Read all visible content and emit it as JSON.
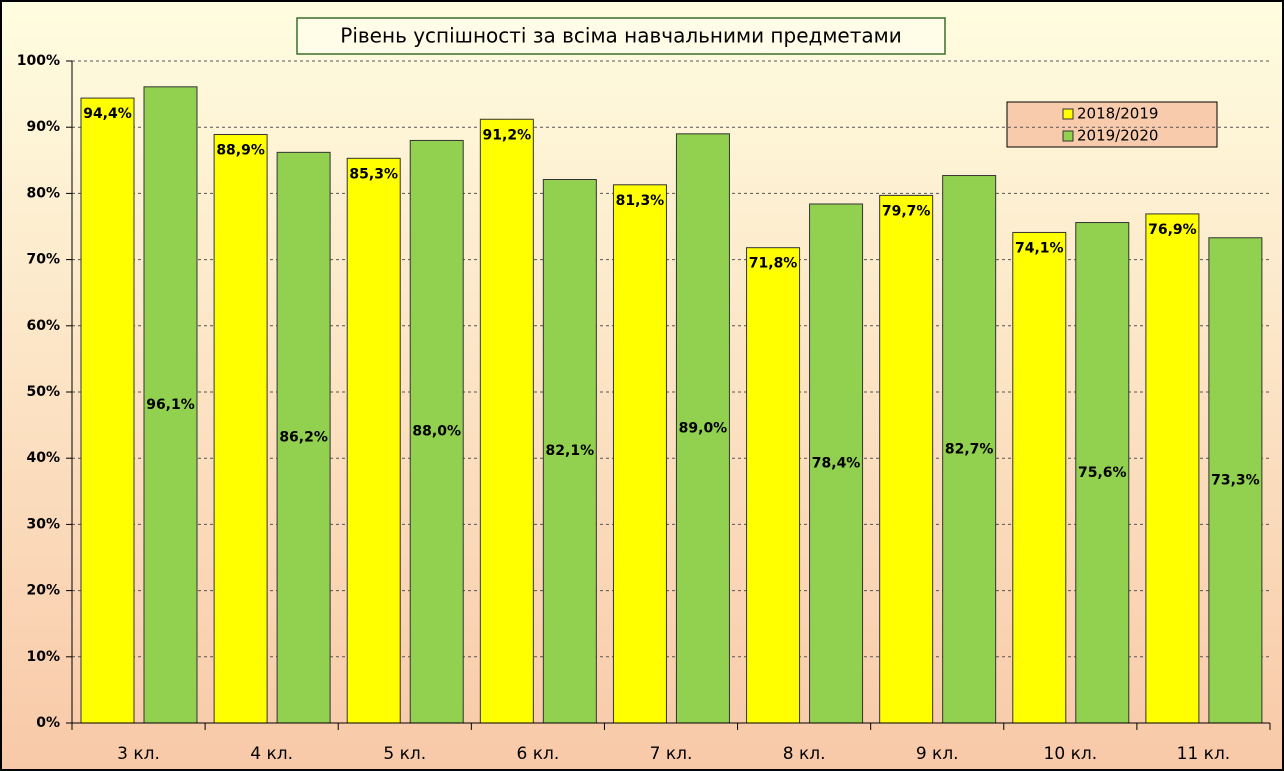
{
  "chart_data": {
    "type": "bar",
    "title": "Рівень успішності за всіма навчальними предметами",
    "categories": [
      "3 кл.",
      "4 кл.",
      "5 кл.",
      "6 кл.",
      "7 кл.",
      "8 кл.",
      "9 кл.",
      "10 кл.",
      "11 кл."
    ],
    "series": [
      {
        "name": "2018/2019",
        "color": "#ffff00",
        "values": [
          94.4,
          88.9,
          85.3,
          91.2,
          81.3,
          71.8,
          79.7,
          74.1,
          76.9
        ],
        "value_labels": [
          "94,4%",
          "88,9%",
          "85,3%",
          "91,2%",
          "81,3%",
          "71,8%",
          "79,7%",
          "74,1%",
          "76,9%"
        ]
      },
      {
        "name": "2019/2020",
        "color": "#92d050",
        "values": [
          96.1,
          86.2,
          88.0,
          82.1,
          89.0,
          78.4,
          82.7,
          75.6,
          73.3
        ],
        "value_labels": [
          "96,1%",
          "86,2%",
          "88,0%",
          "82,1%",
          "89,0%",
          "78,4%",
          "82,7%",
          "75,6%",
          "73,3%"
        ]
      }
    ],
    "ylim": [
      0,
      100
    ],
    "yticks": [
      {
        "value": 0,
        "label": "0%"
      },
      {
        "value": 10,
        "label": "10%"
      },
      {
        "value": 20,
        "label": "20%"
      },
      {
        "value": 30,
        "label": "30%"
      },
      {
        "value": 40,
        "label": "40%"
      },
      {
        "value": 50,
        "label": "50%"
      },
      {
        "value": 60,
        "label": "60%"
      },
      {
        "value": 70,
        "label": "70%"
      },
      {
        "value": 80,
        "label": "80%"
      },
      {
        "value": 90,
        "label": "90%"
      },
      {
        "value": 100,
        "label": "100%"
      }
    ],
    "grid": true,
    "legend": "top-right"
  }
}
